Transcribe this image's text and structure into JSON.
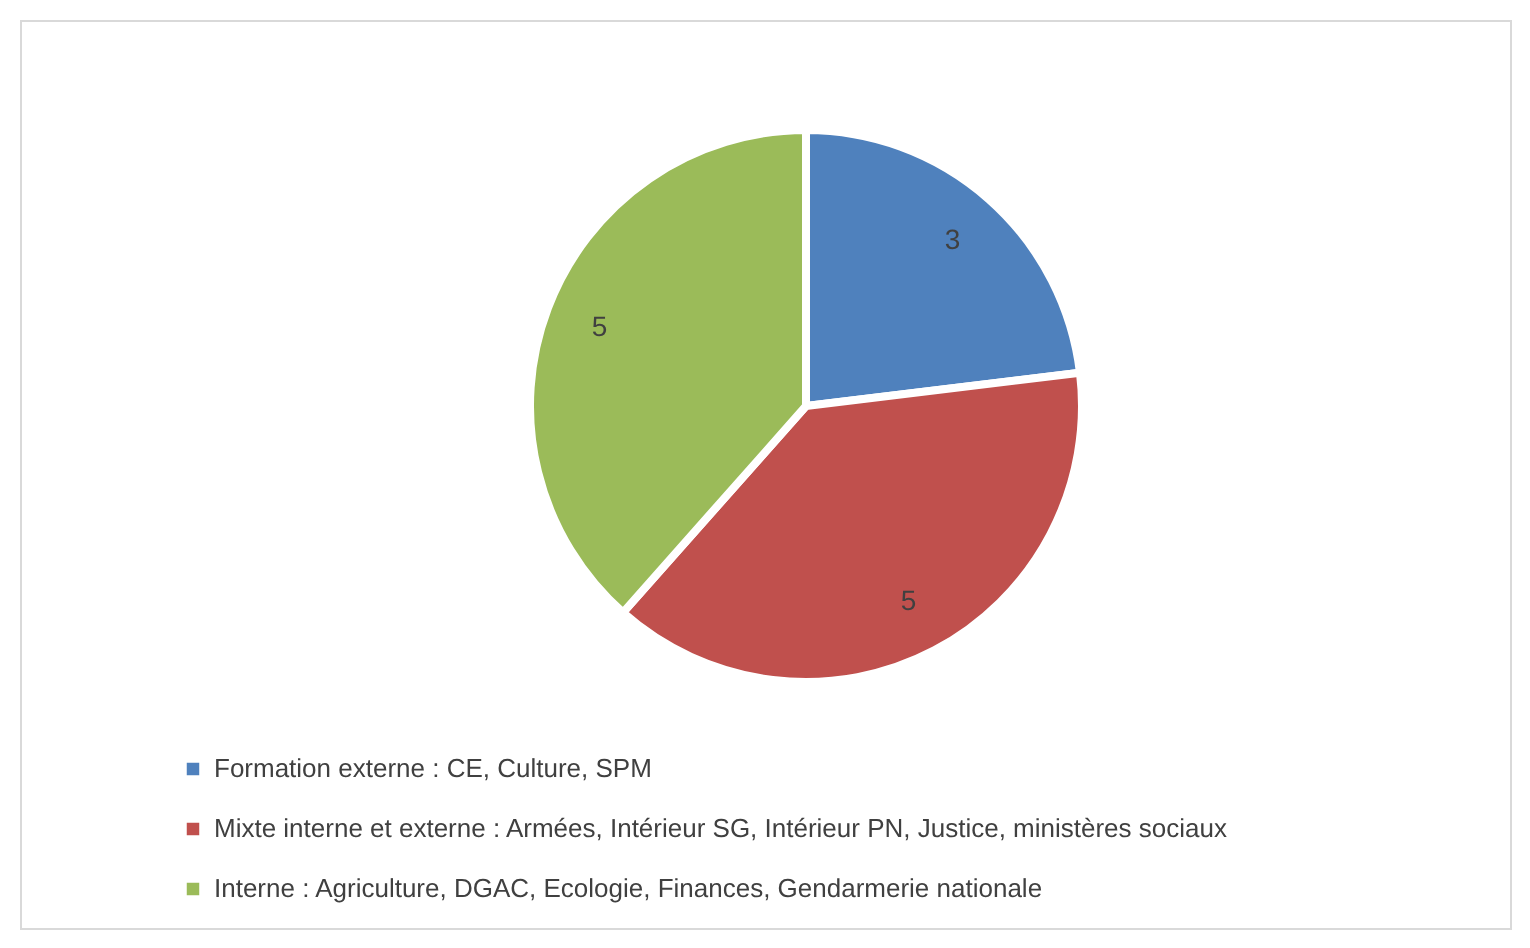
{
  "chart_data": {
    "type": "pie",
    "categories": [
      "Formation externe : CE, Culture, SPM",
      "Mixte interne et externe : Armées, Intérieur SG, Intérieur PN, Justice, ministères sociaux",
      "Interne : Agriculture, DGAC, Ecologie, Finances, Gendarmerie nationale"
    ],
    "values": [
      3,
      5,
      5
    ],
    "colors": [
      "#4f81bd",
      "#c0504d",
      "#9bbb59"
    ],
    "data_labels": true,
    "legend": "bottom"
  }
}
